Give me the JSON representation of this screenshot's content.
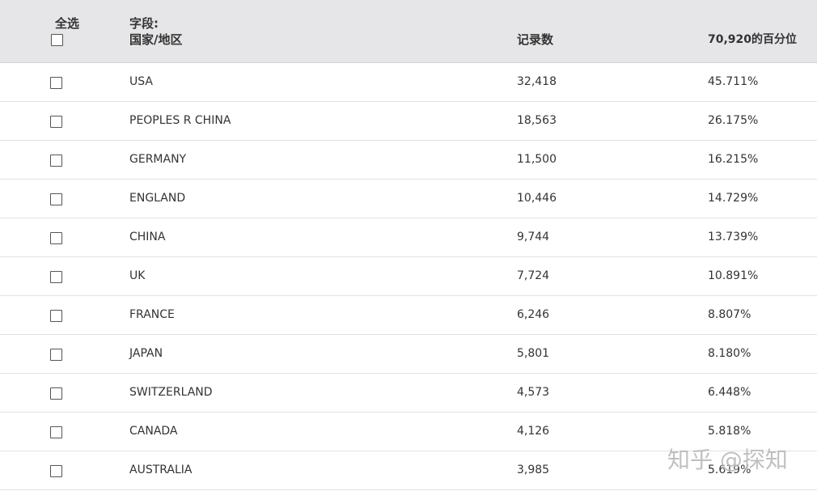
{
  "header": {
    "select_all": "全选",
    "field_label": "字段:",
    "field_name": "国家/地区",
    "count": "记录数",
    "percent": "70,920的百分位"
  },
  "table": {
    "rows": [
      [
        "USA",
        "32,418",
        "45.711%"
      ],
      [
        "PEOPLES R CHINA",
        "18,563",
        "26.175%"
      ],
      [
        "GERMANY",
        "11,500",
        "16.215%"
      ],
      [
        "ENGLAND",
        "10,446",
        "14.729%"
      ],
      [
        "CHINA",
        "9,744",
        "13.739%"
      ],
      [
        "UK",
        "7,724",
        "10.891%"
      ],
      [
        "FRANCE",
        "6,246",
        "8.807%"
      ],
      [
        "JAPAN",
        "5,801",
        "8.180%"
      ],
      [
        "SWITZERLAND",
        "4,573",
        "6.448%"
      ],
      [
        "CANADA",
        "4,126",
        "5.818%"
      ],
      [
        "AUSTRALIA",
        "3,985",
        "5.619%"
      ]
    ]
  },
  "watermark": "知乎 @探知"
}
